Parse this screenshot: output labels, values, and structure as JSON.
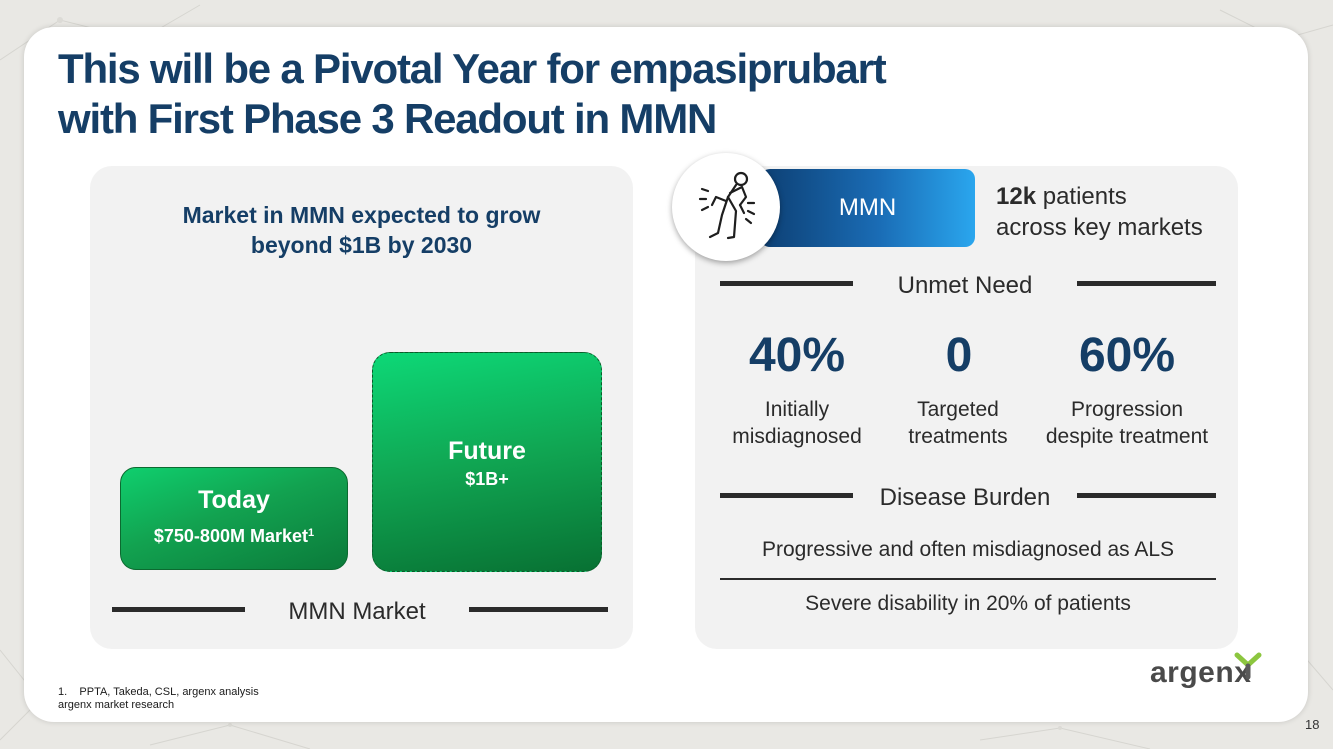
{
  "title": {
    "line1": "This will be a Pivotal Year for empasiprubart",
    "line2": "with First Phase 3 Readout in MMN"
  },
  "market": {
    "heading_line1": "Market in MMN expected to grow",
    "heading_line2": "beyond $1B by 2030",
    "today_label": "Today",
    "today_value": "$750-800M Market",
    "today_footnote_ref": "1",
    "future_label": "Future",
    "future_value": "$1B+",
    "axis_label": "MMN Market"
  },
  "mmn": {
    "icon": "patient-pain-icon",
    "pill_label": "MMN",
    "patients_bold": "12k",
    "patients_text1": " patients",
    "patients_text2": "across key markets"
  },
  "unmet_need": {
    "heading": "Unmet Need",
    "stats": [
      {
        "value": "40%",
        "label_line1": "Initially",
        "label_line2": "misdiagnosed"
      },
      {
        "value": "0",
        "label_line1": "Targeted",
        "label_line2": "treatments"
      },
      {
        "value": "60%",
        "label_line1": "Progression",
        "label_line2": "despite treatment"
      }
    ]
  },
  "disease_burden": {
    "heading": "Disease Burden",
    "line1": "Progressive and often misdiagnosed as ALS",
    "line2": "Severe disability in 20% of patients"
  },
  "logo": {
    "text": "argenx",
    "colors": {
      "green": "#8cc63f",
      "dark": "#4a4a4a"
    }
  },
  "footnotes": {
    "line1": "1.    PPTA, Takeda, CSL, argenx analysis",
    "line2": "argenx market research"
  },
  "page_number": "18",
  "colors": {
    "title": "#153e66",
    "panel": "#f2f2f2",
    "green": "#12a250",
    "blue": "#1a6cb5"
  }
}
